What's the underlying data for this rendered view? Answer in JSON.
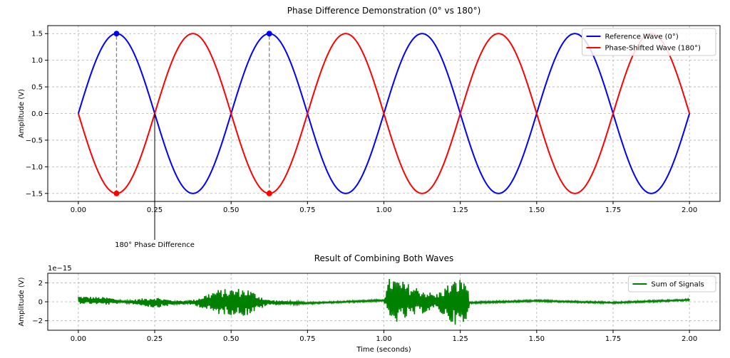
{
  "chart_data": [
    {
      "type": "line",
      "title": "Phase Difference Demonstration (0° vs 180°)",
      "xlabel": "",
      "ylabel": "Amplitude (V)",
      "xlim": [
        -0.1,
        2.1
      ],
      "ylim": [
        -1.65,
        1.65
      ],
      "grid": true,
      "legend_position": "top-right",
      "x_ticks": [
        0.0,
        0.25,
        0.5,
        0.75,
        1.0,
        1.25,
        1.5,
        1.75,
        2.0
      ],
      "x_tick_labels": [
        "0.00",
        "0.25",
        "0.50",
        "0.75",
        "1.00",
        "1.25",
        "1.50",
        "1.75",
        "2.00"
      ],
      "y_ticks": [
        -1.5,
        -1.0,
        -0.5,
        0.0,
        0.5,
        1.0,
        1.5
      ],
      "y_tick_labels": [
        "−1.5",
        "−1.0",
        "−0.5",
        "0.0",
        "0.5",
        "1.0",
        "1.5"
      ],
      "x_range": [
        0,
        2
      ],
      "series": [
        {
          "name": "Reference Wave (0°)",
          "color": "#0000ff",
          "amplitude": 1.5,
          "frequency_hz": 2,
          "phase_deg": 0
        },
        {
          "name": "Phase-Shifted Wave (180°)",
          "color": "#ff0000",
          "amplitude": 1.5,
          "frequency_hz": 2,
          "phase_deg": 180
        }
      ],
      "markers": [
        {
          "x": 0.125,
          "y": 1.5,
          "color": "#0000ff"
        },
        {
          "x": 0.625,
          "y": 1.5,
          "color": "#0000ff"
        },
        {
          "x": 0.125,
          "y": -1.5,
          "color": "#ff0000"
        },
        {
          "x": 0.625,
          "y": -1.5,
          "color": "#ff0000"
        }
      ],
      "vertical_dashed_lines": [
        {
          "x": 0.125,
          "y_from": -1.5,
          "y_to": 1.5
        },
        {
          "x": 0.625,
          "y_from": -1.5,
          "y_to": 1.5
        }
      ],
      "annotation": {
        "text": "180° Phase Difference",
        "x": 0.25,
        "y": 0.0
      }
    },
    {
      "type": "line",
      "title": "Result of Combining Both Waves",
      "xlabel": "Time (seconds)",
      "ylabel": "Amplitude (V)",
      "y_scale_label": "1e−15",
      "xlim": [
        -0.1,
        2.1
      ],
      "ylim": [
        -3.0,
        3.0
      ],
      "grid": true,
      "legend_position": "top-right",
      "x_ticks": [
        0.0,
        0.25,
        0.5,
        0.75,
        1.0,
        1.25,
        1.5,
        1.75,
        2.0
      ],
      "x_tick_labels": [
        "0.00",
        "0.25",
        "0.50",
        "0.75",
        "1.00",
        "1.25",
        "1.50",
        "1.75",
        "2.00"
      ],
      "y_ticks": [
        -2,
        0,
        2
      ],
      "y_tick_labels": [
        "−2",
        "0",
        "2"
      ],
      "series": [
        {
          "name": "Sum of Signals",
          "color": "#008000",
          "note": "floating-point residual noise around zero (units of 1e-15)",
          "envelope": [
            {
              "x": 0.0,
              "amp": 0.4
            },
            {
              "x": 0.1,
              "amp": 0.4
            },
            {
              "x": 0.15,
              "amp": 0.1
            },
            {
              "x": 0.25,
              "amp": 0.6
            },
            {
              "x": 0.32,
              "amp": 0.2
            },
            {
              "x": 0.38,
              "amp": 0.3
            },
            {
              "x": 0.45,
              "amp": 1.3
            },
            {
              "x": 0.55,
              "amp": 1.5
            },
            {
              "x": 0.62,
              "amp": 0.3
            },
            {
              "x": 0.75,
              "amp": 0.1
            },
            {
              "x": 1.0,
              "amp": 0.1
            },
            {
              "x": 1.02,
              "amp": 2.6
            },
            {
              "x": 1.1,
              "amp": 1.6
            },
            {
              "x": 1.17,
              "amp": 0.8
            },
            {
              "x": 1.22,
              "amp": 2.2
            },
            {
              "x": 1.27,
              "amp": 2.8
            },
            {
              "x": 1.28,
              "amp": 0.1
            },
            {
              "x": 2.0,
              "amp": 0.1
            }
          ],
          "offset": [
            {
              "x": 0.0,
              "v": 0.2
            },
            {
              "x": 0.15,
              "v": 0.0
            },
            {
              "x": 0.3,
              "v": -0.1
            },
            {
              "x": 0.5,
              "v": 0.0
            },
            {
              "x": 0.75,
              "v": -0.15
            },
            {
              "x": 1.0,
              "v": 0.15
            },
            {
              "x": 1.28,
              "v": -0.1
            },
            {
              "x": 1.5,
              "v": 0.1
            },
            {
              "x": 1.75,
              "v": -0.1
            },
            {
              "x": 2.0,
              "v": 0.2
            }
          ]
        }
      ]
    }
  ]
}
